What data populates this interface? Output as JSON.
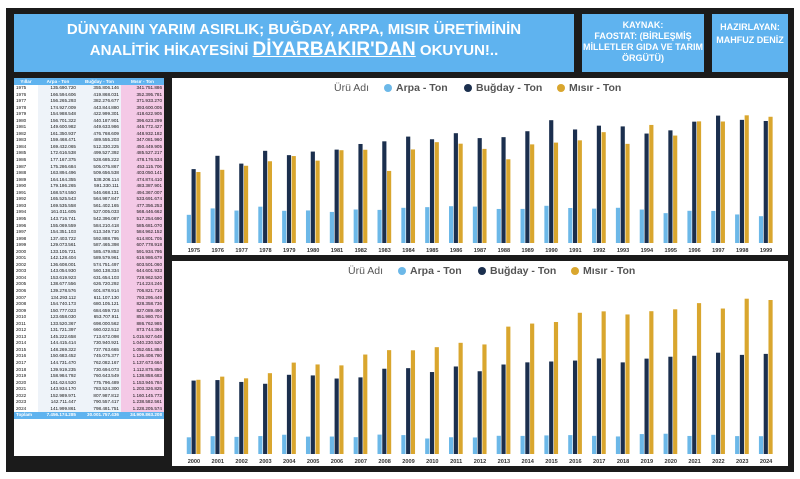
{
  "header": {
    "title_line1": "DÜNYANIN YARIM ASIRLIK; BUĞDAY, ARPA, MISIR ÜRETİMİNİN",
    "title_line2_a": "ANALİTİK HİKAYESİNİ ",
    "title_line2_b": "DİYARBAKIR'DAN",
    "title_line2_c": " OKUYUN!..",
    "source_label": "KAYNAK:",
    "source_text": "FAOSTAT: (BİRLEŞMİŞ MİLLETLER GIDA VE TARIM ÖRGÜTÜ)",
    "author_label": "HAZIRLAYAN:",
    "author_name": "MAHFUZ DENİZ"
  },
  "colors": {
    "arpa": "#6cb8e8",
    "bugday": "#1b2f4e",
    "misir": "#d9a62e",
    "header": "#5fb3ef"
  },
  "table": {
    "headers": [
      "Yıllar",
      "Arpa - Ton",
      "Buğday - Ton",
      "Mısır - Ton"
    ],
    "rows": [
      [
        "1975",
        "135.690.720",
        "355.806.146",
        "341.751.886"
      ],
      [
        "1976",
        "166.594.606",
        "419.868.031",
        "352.395.781"
      ],
      [
        "1977",
        "156.265.293",
        "382.276.677",
        "371.933.270"
      ],
      [
        "1978",
        "174.927.009",
        "443.844.880",
        "393.600.005"
      ],
      [
        "1979",
        "154.988.548",
        "422.999.301",
        "418.622.905"
      ],
      [
        "1980",
        "156.701.322",
        "440.187.901",
        "396.623.299"
      ],
      [
        "1981",
        "149.600.982",
        "449.633.986",
        "446.772.427"
      ],
      [
        "1982",
        "161.350.937",
        "476.768.609",
        "448.932.182"
      ],
      [
        "1983",
        "159.468.471",
        "489.555.203",
        "347.081.960"
      ],
      [
        "1984",
        "169.432.065",
        "512.330.225",
        "450.449.905"
      ],
      [
        "1985",
        "172.616.538",
        "499.527.392",
        "485.527.217"
      ],
      [
        "1986",
        "177.167.375",
        "528.685.222",
        "478.176.534"
      ],
      [
        "1987",
        "175.286.684",
        "505.075.867",
        "453.115.706"
      ],
      [
        "1988",
        "163.894.496",
        "509.656.538",
        "403.050.141"
      ],
      [
        "1989",
        "164.164.355",
        "538.206.114",
        "474.874.410"
      ],
      [
        "1990",
        "179.186.265",
        "591.330.111",
        "483.387.901"
      ],
      [
        "1991",
        "168.574.550",
        "546.668.131",
        "494.367.007"
      ],
      [
        "1992",
        "165.525.543",
        "564.987.847",
        "533.691.674"
      ],
      [
        "1993",
        "169.535.558",
        "561.402.165",
        "477.356.253"
      ],
      [
        "1994",
        "161.011.605",
        "527.005.033",
        "568.446.662"
      ],
      [
        "1995",
        "143.716.741",
        "542.396.087",
        "517.254.690"
      ],
      [
        "1996",
        "155.069.559",
        "584.210.418",
        "585.681.070"
      ],
      [
        "1997",
        "154.351.103",
        "613.349.710",
        "584.962.152"
      ],
      [
        "1998",
        "137.403.722",
        "592.888.795",
        "614.801.705"
      ],
      [
        "1999",
        "129.073.561",
        "587.465.398",
        "607.778.918"
      ],
      [
        "2000",
        "133.105.721",
        "585.479.852",
        "591.934.795"
      ],
      [
        "2001",
        "142.128.404",
        "589.579.961",
        "616.986.679"
      ],
      [
        "2002",
        "136.608.001",
        "574.751.497",
        "603.501.060"
      ],
      [
        "2003",
        "143.054.930",
        "560.138.334",
        "644.601.933"
      ],
      [
        "2004",
        "153.619.923",
        "631.654.103",
        "728.962.520"
      ],
      [
        "2005",
        "138.677.556",
        "626.720.292",
        "714.224.246"
      ],
      [
        "2006",
        "139.278.576",
        "601.878.914",
        "706.821.710"
      ],
      [
        "2007",
        "134.293.112",
        "611.107.130",
        "793.295.449"
      ],
      [
        "2008",
        "154.740.173",
        "680.105.121",
        "828.358.736"
      ],
      [
        "2009",
        "150.777.023",
        "684.659.724",
        "827.089.490"
      ],
      [
        "2010",
        "123.658.030",
        "653.707.911",
        "851.980.704"
      ],
      [
        "2011",
        "133.520.367",
        "698.000.562",
        "886.762.985"
      ],
      [
        "2012",
        "131.721.397",
        "660.022.512",
        "873.744.366"
      ],
      [
        "2013",
        "145.222.658",
        "713.672.098",
        "1.015.927.648"
      ],
      [
        "2014",
        "144.415.414",
        "730.940.921",
        "1.040.230.520"
      ],
      [
        "2015",
        "148.269.322",
        "737.763.665",
        "1.052.651.884"
      ],
      [
        "2016",
        "150.683.452",
        "745.075.377",
        "1.126.408.780"
      ],
      [
        "2017",
        "144.731.470",
        "762.082.167",
        "1.137.673.664"
      ],
      [
        "2018",
        "139.919.235",
        "730.694.073",
        "1.112.875.856"
      ],
      [
        "2019",
        "158.984.792",
        "760.643.549",
        "1.138.858.683"
      ],
      [
        "2020",
        "161.624.520",
        "775.796.489",
        "1.153.946.784"
      ],
      [
        "2021",
        "143.934.170",
        "783.524.300",
        "1.203.326.825"
      ],
      [
        "2022",
        "152.989.971",
        "807.987.812",
        "1.160.145.773"
      ],
      [
        "2023",
        "142.711.447",
        "790.557.417",
        "1.238.582.561"
      ],
      [
        "2024",
        "141.999.861",
        "798.481.751",
        "1.228.205.574"
      ]
    ],
    "total": [
      "Toplam",
      "7.456.174.285",
      "30.001.757.436",
      "34.909.863.208"
    ]
  },
  "chart_data": [
    {
      "type": "bar",
      "legend_title": "Ürü Adı",
      "legend_placement": "top-left",
      "categories": [
        "1975",
        "1976",
        "1977",
        "1978",
        "1979",
        "1980",
        "1981",
        "1982",
        "1983",
        "1984",
        "1985",
        "1986",
        "1987",
        "1988",
        "1989",
        "1990",
        "1991",
        "1992",
        "1993",
        "1994",
        "1995",
        "1996",
        "1997",
        "1998",
        "1999"
      ],
      "ylim": [
        0,
        650000000
      ],
      "series": [
        {
          "name": "Arpa - Ton",
          "color": "#6cb8e8",
          "values": [
            135690720,
            166594606,
            156265293,
            174927009,
            154988548,
            156701322,
            149600982,
            161350937,
            159468471,
            169432065,
            172616538,
            177167375,
            175286684,
            163894496,
            164164355,
            179186265,
            168574550,
            165525543,
            169535558,
            161011605,
            143716741,
            155069559,
            154351103,
            137403722,
            129073561
          ]
        },
        {
          "name": "Buğday - Ton",
          "color": "#1b2f4e",
          "values": [
            355806146,
            419868031,
            382276677,
            443844880,
            422999301,
            440187901,
            449633986,
            476768609,
            489555203,
            512330225,
            499527392,
            528685222,
            505075867,
            509656538,
            538206114,
            591330111,
            546668131,
            564987847,
            561402165,
            527005033,
            542396087,
            584210418,
            613349710,
            592888795,
            587465398
          ]
        },
        {
          "name": "Mısır - Ton",
          "color": "#d9a62e",
          "values": [
            341751886,
            352395781,
            371933270,
            393600005,
            418622905,
            396623299,
            446772427,
            448932182,
            347081960,
            450449905,
            485527217,
            478176534,
            453115706,
            403050141,
            474874410,
            483387901,
            494367007,
            533691674,
            477356253,
            568446662,
            517254690,
            585681070,
            584962152,
            614801705,
            607778918
          ]
        }
      ]
    },
    {
      "type": "bar",
      "legend_title": "Ürü Adı",
      "legend_placement": "top-left",
      "categories": [
        "2000",
        "2001",
        "2002",
        "2003",
        "2004",
        "2005",
        "2006",
        "2007",
        "2008",
        "2009",
        "2010",
        "2011",
        "2012",
        "2013",
        "2014",
        "2015",
        "2016",
        "2017",
        "2018",
        "2019",
        "2020",
        "2021",
        "2022",
        "2023",
        "2024"
      ],
      "ylim": [
        0,
        1300000000
      ],
      "series": [
        {
          "name": "Arpa - Ton",
          "color": "#6cb8e8",
          "values": [
            133105721,
            142128404,
            136608001,
            143054930,
            153619923,
            138677556,
            139278576,
            134293112,
            154740173,
            150777023,
            123658030,
            133520367,
            131721397,
            145222658,
            144415414,
            148269322,
            150683452,
            144731470,
            139919235,
            158984792,
            161624520,
            143934170,
            152989971,
            142711447,
            141999861
          ]
        },
        {
          "name": "Buğday - Ton",
          "color": "#1b2f4e",
          "values": [
            585479852,
            589579961,
            574751497,
            560138334,
            631654103,
            626720292,
            601878914,
            611107130,
            680105121,
            684659724,
            653707911,
            698000562,
            660022512,
            713672098,
            730940921,
            737763665,
            745075377,
            762082167,
            730694073,
            760643549,
            775796489,
            783524300,
            807987812,
            790557417,
            798481751
          ]
        },
        {
          "name": "Mısır - Ton",
          "color": "#d9a62e",
          "values": [
            591934795,
            616986679,
            603501060,
            644601933,
            728962520,
            714224246,
            706821710,
            793295449,
            828358736,
            827089490,
            851980704,
            886762985,
            873744366,
            1015927648,
            1040230520,
            1052651884,
            1126408780,
            1137673664,
            1112875856,
            1138858683,
            1153946784,
            1203326825,
            1160145773,
            1238582561,
            1228205574
          ]
        }
      ]
    }
  ]
}
